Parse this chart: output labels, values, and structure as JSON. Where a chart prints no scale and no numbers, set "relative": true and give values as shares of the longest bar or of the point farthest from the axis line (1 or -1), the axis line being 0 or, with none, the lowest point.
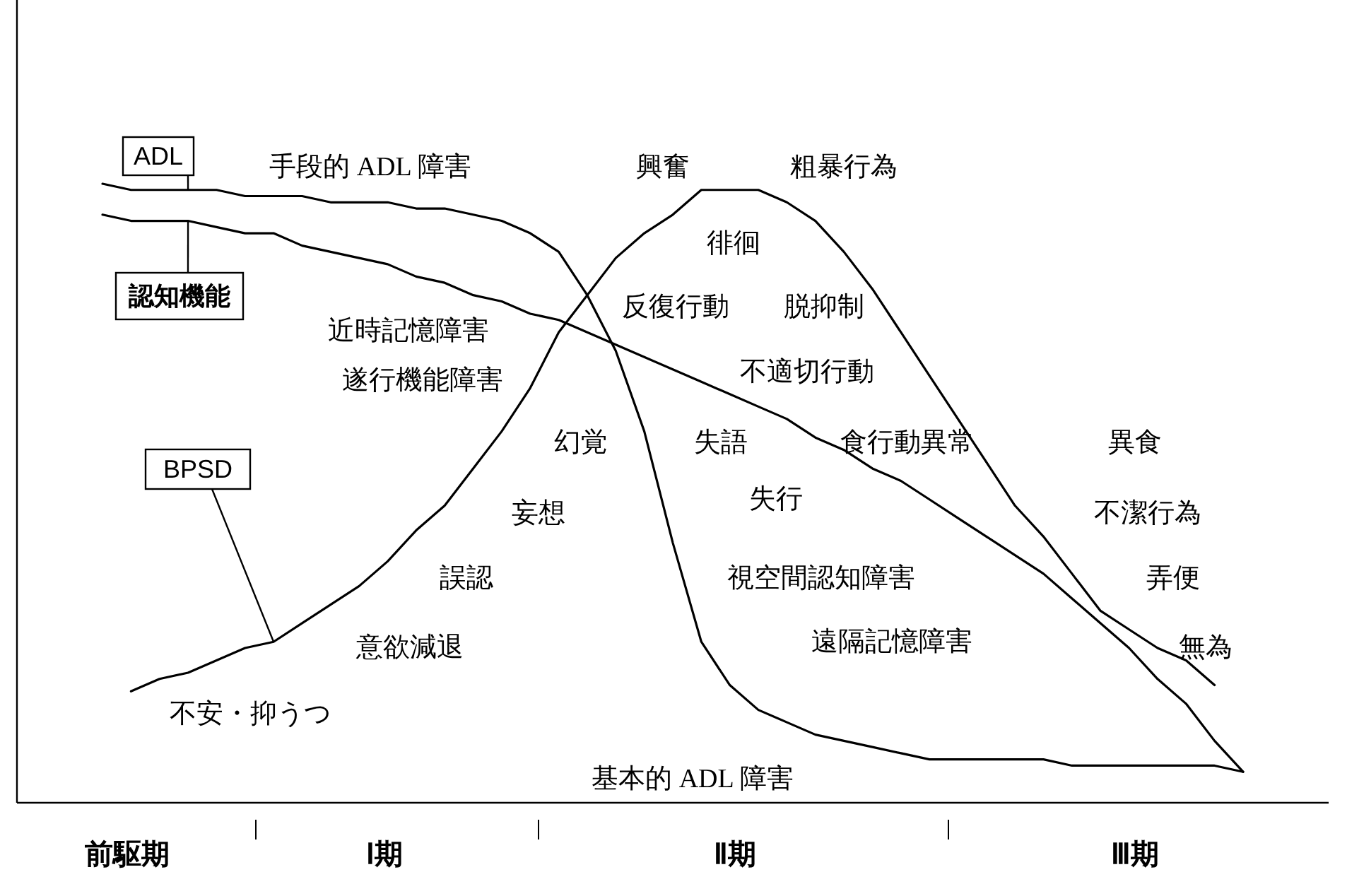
{
  "chart_data": {
    "type": "line",
    "relative": true,
    "legend": "left",
    "line_style": "solid",
    "categories": [
      null,
      null,
      null,
      null,
      null,
      null,
      null,
      null,
      null,
      null,
      null,
      null,
      null,
      null,
      null,
      null,
      null,
      null,
      null,
      null,
      null,
      null,
      null,
      null,
      null,
      null,
      null,
      null,
      null,
      null,
      null,
      null,
      null,
      null,
      null,
      null,
      null,
      null,
      null,
      null,
      null,
      null,
      null,
      null,
      null,
      null,
      null
    ],
    "series": [
      {
        "name": "ADL",
        "color": "#000000",
        "values": [
          null,
          null,
          null,
          1.0,
          0.99,
          0.99,
          0.99,
          0.99,
          0.98,
          0.98,
          0.98,
          0.97,
          0.97,
          0.97,
          0.96,
          0.96,
          0.95,
          0.94,
          0.92,
          0.89,
          0.82,
          0.73,
          0.6,
          0.42,
          0.26,
          0.19,
          0.15,
          0.13,
          0.11,
          0.1,
          0.09,
          0.08,
          0.07,
          0.07,
          0.07,
          0.07,
          0.07,
          0.06,
          0.06,
          0.06,
          0.06,
          0.06,
          0.06,
          0.05,
          null,
          null,
          null
        ]
      },
      {
        "name": "認知機能",
        "color": "#000000",
        "values": [
          null,
          null,
          null,
          0.95,
          0.94,
          0.94,
          0.94,
          0.93,
          0.92,
          0.92,
          0.9,
          0.89,
          0.88,
          0.87,
          0.85,
          0.84,
          0.82,
          0.81,
          0.79,
          0.78,
          0.76,
          0.74,
          0.72,
          0.7,
          0.68,
          0.66,
          0.64,
          0.62,
          0.59,
          0.57,
          0.54,
          0.52,
          0.49,
          0.46,
          0.43,
          0.4,
          0.37,
          0.33,
          0.29,
          0.25,
          0.2,
          0.16,
          0.1,
          0.05,
          null,
          null,
          null
        ]
      },
      {
        "name": "BPSD",
        "color": "#000000",
        "values": [
          null,
          null,
          null,
          null,
          0.18,
          0.2,
          0.21,
          0.23,
          0.25,
          0.26,
          0.29,
          0.32,
          0.35,
          0.39,
          0.44,
          0.48,
          0.54,
          0.6,
          0.67,
          0.76,
          0.82,
          0.88,
          0.92,
          0.95,
          0.99,
          0.99,
          0.99,
          0.97,
          0.94,
          0.89,
          0.83,
          0.76,
          0.69,
          0.62,
          0.55,
          0.48,
          0.43,
          0.37,
          0.31,
          0.28,
          0.25,
          0.23,
          0.19,
          null,
          null,
          null,
          null
        ]
      }
    ],
    "annotations": [
      "手段的 ADL 障害",
      "興奮",
      "粗暴行為",
      "徘徊",
      "反復行動",
      "脱抑制",
      "近時記憶障害",
      "不適切行動",
      "遂行機能障害",
      "幻覚",
      "失語",
      "食行動異常",
      "異食",
      "失行",
      "妄想",
      "不潔行為",
      "視空間認知障害",
      "誤認",
      "弄便",
      "意欲減退",
      "遠隔記憶障害",
      "無為",
      "不安・抑うつ",
      "基本的 ADL 障害",
      "前駆期",
      "Ⅰ期",
      "Ⅱ期",
      "Ⅲ期"
    ]
  }
}
